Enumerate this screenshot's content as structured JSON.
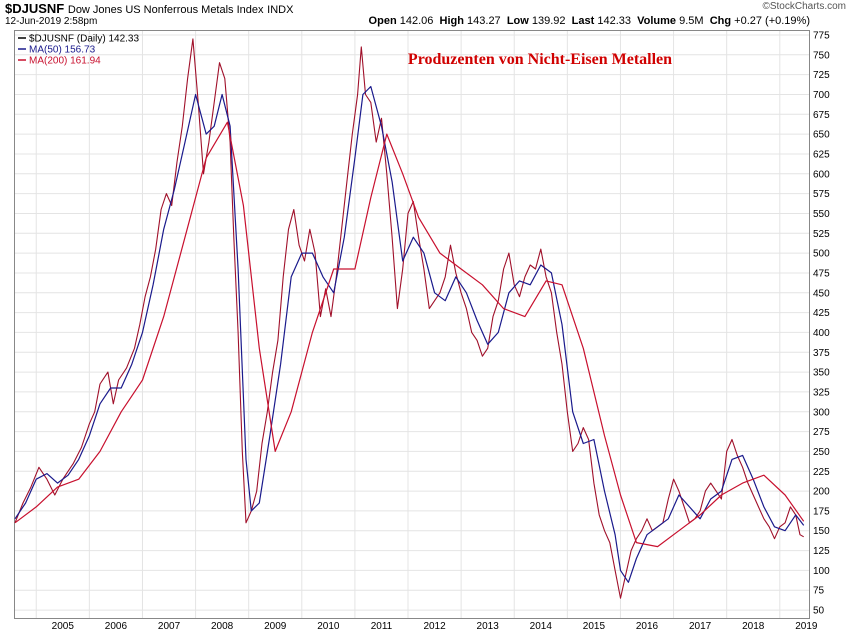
{
  "header": {
    "symbol": "$DJUSNF",
    "description": "Dow Jones US Nonferrous Metals Index",
    "exchange": "INDX",
    "date": "12-Jun-2019 2:58pm",
    "brand": "©StockCharts.com",
    "open_label": "Open",
    "open": "142.06",
    "high_label": "High",
    "high": "143.27",
    "low_label": "Low",
    "low": "139.92",
    "last_label": "Last",
    "last": "142.33",
    "volume_label": "Volume",
    "volume": "9.5M",
    "chg_label": "Chg",
    "chg": "+0.27 (+0.19%)"
  },
  "legend": [
    {
      "label": "$DJUSNF (Daily) 142.33",
      "color": "#000000"
    },
    {
      "label": "MA(50) 156.73",
      "color": "#1a1a8c"
    },
    {
      "label": "MA(200) 161.94",
      "color": "#c8102e"
    }
  ],
  "annotation": "Produzenten von Nicht-Eisen Metallen",
  "chart_data": {
    "type": "line",
    "title": "Produzenten von Nicht-Eisen Metallen",
    "ylim": [
      40,
      780
    ],
    "xlim": [
      2004.6,
      2019.55
    ],
    "y_ticks": [
      50,
      75,
      100,
      125,
      150,
      175,
      200,
      225,
      250,
      275,
      300,
      325,
      350,
      375,
      400,
      425,
      450,
      475,
      500,
      525,
      550,
      575,
      600,
      625,
      650,
      675,
      700,
      725,
      750,
      775
    ],
    "x_ticks": [
      "2005",
      "2006",
      "2007",
      "2008",
      "2009",
      "2010",
      "2011",
      "2012",
      "2013",
      "2014",
      "2015",
      "2016",
      "2017",
      "2018",
      "2019"
    ],
    "series": [
      {
        "name": "$DJUSNF (Daily)",
        "color": "#a0102a",
        "points": [
          [
            2004.6,
            160
          ],
          [
            2004.75,
            185
          ],
          [
            2004.9,
            205
          ],
          [
            2005.05,
            230
          ],
          [
            2005.2,
            215
          ],
          [
            2005.35,
            195
          ],
          [
            2005.5,
            215
          ],
          [
            2005.7,
            235
          ],
          [
            2005.85,
            255
          ],
          [
            2006.0,
            285
          ],
          [
            2006.1,
            300
          ],
          [
            2006.2,
            335
          ],
          [
            2006.35,
            350
          ],
          [
            2006.45,
            310
          ],
          [
            2006.55,
            340
          ],
          [
            2006.7,
            355
          ],
          [
            2006.85,
            380
          ],
          [
            2006.95,
            410
          ],
          [
            2007.05,
            445
          ],
          [
            2007.15,
            470
          ],
          [
            2007.25,
            505
          ],
          [
            2007.35,
            555
          ],
          [
            2007.45,
            575
          ],
          [
            2007.55,
            560
          ],
          [
            2007.65,
            615
          ],
          [
            2007.75,
            660
          ],
          [
            2007.85,
            720
          ],
          [
            2007.95,
            770
          ],
          [
            2008.05,
            690
          ],
          [
            2008.15,
            600
          ],
          [
            2008.25,
            640
          ],
          [
            2008.35,
            690
          ],
          [
            2008.45,
            740
          ],
          [
            2008.55,
            720
          ],
          [
            2008.65,
            640
          ],
          [
            2008.72,
            520
          ],
          [
            2008.8,
            400
          ],
          [
            2008.88,
            250
          ],
          [
            2008.95,
            160
          ],
          [
            2009.05,
            175
          ],
          [
            2009.15,
            200
          ],
          [
            2009.25,
            260
          ],
          [
            2009.35,
            300
          ],
          [
            2009.45,
            350
          ],
          [
            2009.55,
            390
          ],
          [
            2009.65,
            470
          ],
          [
            2009.75,
            530
          ],
          [
            2009.85,
            555
          ],
          [
            2009.95,
            510
          ],
          [
            2010.05,
            490
          ],
          [
            2010.15,
            530
          ],
          [
            2010.25,
            500
          ],
          [
            2010.35,
            420
          ],
          [
            2010.45,
            455
          ],
          [
            2010.55,
            420
          ],
          [
            2010.65,
            470
          ],
          [
            2010.75,
            530
          ],
          [
            2010.85,
            590
          ],
          [
            2010.95,
            650
          ],
          [
            2011.05,
            700
          ],
          [
            2011.12,
            760
          ],
          [
            2011.2,
            700
          ],
          [
            2011.3,
            690
          ],
          [
            2011.4,
            640
          ],
          [
            2011.5,
            670
          ],
          [
            2011.6,
            600
          ],
          [
            2011.7,
            520
          ],
          [
            2011.8,
            430
          ],
          [
            2011.9,
            480
          ],
          [
            2012.0,
            550
          ],
          [
            2012.1,
            565
          ],
          [
            2012.2,
            520
          ],
          [
            2012.3,
            480
          ],
          [
            2012.4,
            430
          ],
          [
            2012.5,
            440
          ],
          [
            2012.6,
            450
          ],
          [
            2012.7,
            470
          ],
          [
            2012.8,
            510
          ],
          [
            2012.9,
            475
          ],
          [
            2013.0,
            450
          ],
          [
            2013.1,
            430
          ],
          [
            2013.2,
            400
          ],
          [
            2013.3,
            390
          ],
          [
            2013.4,
            370
          ],
          [
            2013.5,
            380
          ],
          [
            2013.6,
            420
          ],
          [
            2013.7,
            440
          ],
          [
            2013.8,
            480
          ],
          [
            2013.9,
            500
          ],
          [
            2014.0,
            460
          ],
          [
            2014.1,
            445
          ],
          [
            2014.2,
            470
          ],
          [
            2014.3,
            485
          ],
          [
            2014.4,
            480
          ],
          [
            2014.5,
            505
          ],
          [
            2014.6,
            470
          ],
          [
            2014.7,
            450
          ],
          [
            2014.8,
            400
          ],
          [
            2014.9,
            360
          ],
          [
            2015.0,
            300
          ],
          [
            2015.1,
            250
          ],
          [
            2015.2,
            260
          ],
          [
            2015.3,
            280
          ],
          [
            2015.4,
            265
          ],
          [
            2015.5,
            210
          ],
          [
            2015.6,
            170
          ],
          [
            2015.7,
            150
          ],
          [
            2015.8,
            135
          ],
          [
            2015.9,
            100
          ],
          [
            2016.0,
            65
          ],
          [
            2016.1,
            95
          ],
          [
            2016.2,
            125
          ],
          [
            2016.3,
            140
          ],
          [
            2016.4,
            150
          ],
          [
            2016.5,
            165
          ],
          [
            2016.6,
            150
          ],
          [
            2016.7,
            155
          ],
          [
            2016.8,
            160
          ],
          [
            2016.9,
            190
          ],
          [
            2017.0,
            215
          ],
          [
            2017.1,
            200
          ],
          [
            2017.2,
            180
          ],
          [
            2017.3,
            160
          ],
          [
            2017.4,
            165
          ],
          [
            2017.5,
            175
          ],
          [
            2017.6,
            200
          ],
          [
            2017.7,
            210
          ],
          [
            2017.8,
            200
          ],
          [
            2017.9,
            190
          ],
          [
            2018.0,
            250
          ],
          [
            2018.1,
            265
          ],
          [
            2018.2,
            245
          ],
          [
            2018.3,
            230
          ],
          [
            2018.4,
            210
          ],
          [
            2018.5,
            195
          ],
          [
            2018.6,
            180
          ],
          [
            2018.7,
            165
          ],
          [
            2018.8,
            155
          ],
          [
            2018.9,
            140
          ],
          [
            2019.0,
            155
          ],
          [
            2019.1,
            160
          ],
          [
            2019.2,
            180
          ],
          [
            2019.3,
            170
          ],
          [
            2019.38,
            145
          ],
          [
            2019.45,
            142.33
          ]
        ]
      },
      {
        "name": "MA(50)",
        "color": "#1a1a8c",
        "points": [
          [
            2004.6,
            165
          ],
          [
            2004.8,
            185
          ],
          [
            2005.0,
            215
          ],
          [
            2005.2,
            222
          ],
          [
            2005.4,
            210
          ],
          [
            2005.6,
            220
          ],
          [
            2005.8,
            240
          ],
          [
            2006.0,
            270
          ],
          [
            2006.2,
            310
          ],
          [
            2006.4,
            330
          ],
          [
            2006.6,
            330
          ],
          [
            2006.8,
            360
          ],
          [
            2007.0,
            400
          ],
          [
            2007.2,
            460
          ],
          [
            2007.4,
            530
          ],
          [
            2007.6,
            580
          ],
          [
            2007.8,
            640
          ],
          [
            2008.0,
            700
          ],
          [
            2008.2,
            650
          ],
          [
            2008.35,
            660
          ],
          [
            2008.5,
            700
          ],
          [
            2008.65,
            660
          ],
          [
            2008.8,
            480
          ],
          [
            2008.95,
            240
          ],
          [
            2009.05,
            175
          ],
          [
            2009.2,
            185
          ],
          [
            2009.4,
            270
          ],
          [
            2009.6,
            360
          ],
          [
            2009.8,
            470
          ],
          [
            2010.0,
            500
          ],
          [
            2010.2,
            500
          ],
          [
            2010.4,
            470
          ],
          [
            2010.6,
            450
          ],
          [
            2010.8,
            520
          ],
          [
            2011.0,
            620
          ],
          [
            2011.15,
            700
          ],
          [
            2011.3,
            710
          ],
          [
            2011.5,
            660
          ],
          [
            2011.7,
            590
          ],
          [
            2011.9,
            490
          ],
          [
            2012.1,
            520
          ],
          [
            2012.3,
            500
          ],
          [
            2012.5,
            450
          ],
          [
            2012.7,
            440
          ],
          [
            2012.9,
            470
          ],
          [
            2013.1,
            450
          ],
          [
            2013.3,
            415
          ],
          [
            2013.5,
            385
          ],
          [
            2013.7,
            400
          ],
          [
            2013.9,
            450
          ],
          [
            2014.1,
            465
          ],
          [
            2014.3,
            460
          ],
          [
            2014.5,
            485
          ],
          [
            2014.7,
            475
          ],
          [
            2014.9,
            410
          ],
          [
            2015.1,
            300
          ],
          [
            2015.3,
            260
          ],
          [
            2015.5,
            265
          ],
          [
            2015.7,
            200
          ],
          [
            2015.9,
            145
          ],
          [
            2016.0,
            100
          ],
          [
            2016.15,
            85
          ],
          [
            2016.3,
            115
          ],
          [
            2016.5,
            145
          ],
          [
            2016.7,
            155
          ],
          [
            2016.9,
            165
          ],
          [
            2017.1,
            195
          ],
          [
            2017.3,
            180
          ],
          [
            2017.5,
            165
          ],
          [
            2017.7,
            190
          ],
          [
            2017.9,
            200
          ],
          [
            2018.1,
            240
          ],
          [
            2018.3,
            245
          ],
          [
            2018.5,
            215
          ],
          [
            2018.7,
            180
          ],
          [
            2018.9,
            155
          ],
          [
            2019.1,
            150
          ],
          [
            2019.3,
            170
          ],
          [
            2019.45,
            156.73
          ]
        ]
      },
      {
        "name": "MA(200)",
        "color": "#c8102e",
        "points": [
          [
            2004.6,
            160
          ],
          [
            2005.0,
            180
          ],
          [
            2005.4,
            205
          ],
          [
            2005.8,
            215
          ],
          [
            2006.2,
            250
          ],
          [
            2006.6,
            300
          ],
          [
            2007.0,
            340
          ],
          [
            2007.4,
            420
          ],
          [
            2007.8,
            520
          ],
          [
            2008.2,
            620
          ],
          [
            2008.6,
            665
          ],
          [
            2008.9,
            560
          ],
          [
            2009.2,
            380
          ],
          [
            2009.5,
            250
          ],
          [
            2009.8,
            300
          ],
          [
            2010.2,
            400
          ],
          [
            2010.6,
            480
          ],
          [
            2011.0,
            480
          ],
          [
            2011.3,
            570
          ],
          [
            2011.6,
            650
          ],
          [
            2011.9,
            600
          ],
          [
            2012.2,
            545
          ],
          [
            2012.6,
            500
          ],
          [
            2013.0,
            480
          ],
          [
            2013.4,
            460
          ],
          [
            2013.8,
            430
          ],
          [
            2014.2,
            420
          ],
          [
            2014.6,
            465
          ],
          [
            2014.9,
            460
          ],
          [
            2015.3,
            380
          ],
          [
            2015.7,
            270
          ],
          [
            2016.0,
            195
          ],
          [
            2016.3,
            135
          ],
          [
            2016.7,
            130
          ],
          [
            2017.1,
            150
          ],
          [
            2017.5,
            170
          ],
          [
            2017.9,
            195
          ],
          [
            2018.3,
            210
          ],
          [
            2018.7,
            220
          ],
          [
            2019.1,
            195
          ],
          [
            2019.45,
            161.94
          ]
        ]
      }
    ]
  }
}
